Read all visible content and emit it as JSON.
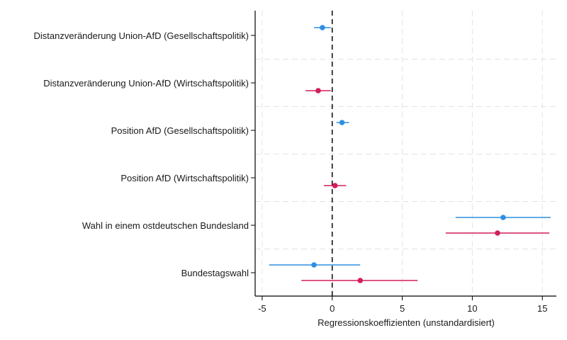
{
  "chart_data": {
    "type": "coefficient-plot",
    "xlabel": "Regressionskoeffizienten (unstandardisiert)",
    "xlim": [
      -5.5,
      16
    ],
    "xticks": [
      -5,
      0,
      5,
      10,
      15
    ],
    "reference_line_x": 0,
    "grid": true,
    "series_colors": [
      "#2f8fe0",
      "#d11e5a"
    ],
    "categories": [
      "Distanzveränderung Union-AfD (Gesellschaftspolitik)",
      "Distanzveränderung Union-AfD (Wirtschaftspolitik)",
      "Position AfD (Gesellschaftspolitik)",
      "Position AfD (Wirtschaftspolitik)",
      "Wahl in einem ostdeutschen Bundesland",
      "Bundestagswahl"
    ],
    "series": [
      {
        "color": "#2f8fe0",
        "points": [
          {
            "category": 0,
            "estimate": -0.7,
            "ci": [
              -1.3,
              -0.1
            ]
          },
          {
            "category": 2,
            "estimate": 0.7,
            "ci": [
              0.3,
              1.2
            ]
          },
          {
            "category": 4,
            "estimate": 12.2,
            "ci": [
              8.8,
              15.6
            ]
          },
          {
            "category": 5,
            "estimate": -1.3,
            "ci": [
              -4.5,
              2.0
            ]
          }
        ]
      },
      {
        "color": "#d11e5a",
        "points": [
          {
            "category": 1,
            "estimate": -1.0,
            "ci": [
              -1.9,
              -0.1
            ]
          },
          {
            "category": 3,
            "estimate": 0.2,
            "ci": [
              -0.6,
              1.0
            ]
          },
          {
            "category": 4,
            "estimate": 11.8,
            "ci": [
              8.1,
              15.5
            ]
          },
          {
            "category": 5,
            "estimate": 2.0,
            "ci": [
              -2.2,
              6.1
            ]
          }
        ]
      }
    ]
  }
}
